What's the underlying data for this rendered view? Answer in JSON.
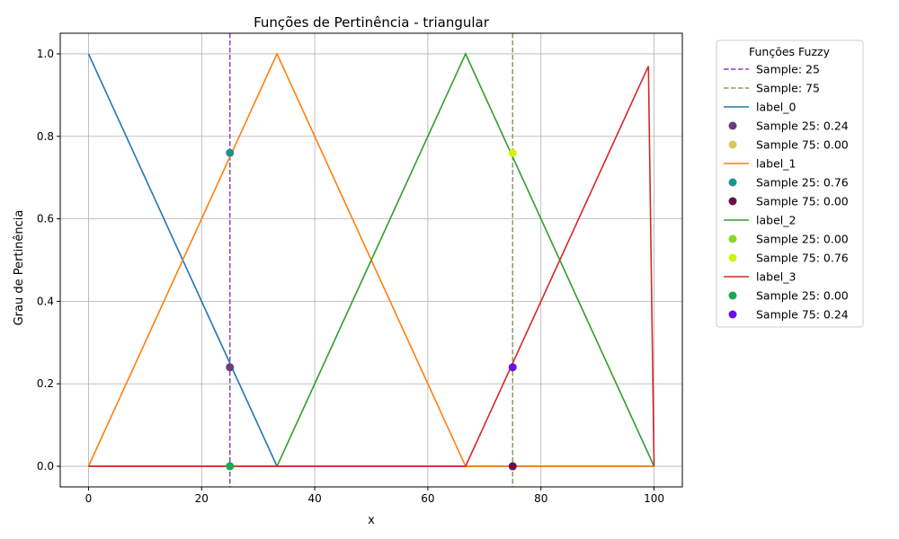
{
  "chart_data": {
    "type": "line",
    "title": "Funções de Pertinência - triangular",
    "xlabel": "x",
    "ylabel": "Grau de Pertinência",
    "xlim": [
      -5,
      105
    ],
    "ylim": [
      -0.05,
      1.05
    ],
    "x_ticks": [
      0,
      20,
      40,
      60,
      80,
      100
    ],
    "x_tick_labels": [
      "0",
      "20",
      "40",
      "60",
      "80",
      "100"
    ],
    "y_ticks": [
      0,
      0.2,
      0.4,
      0.6,
      0.8,
      1.0
    ],
    "y_tick_labels": [
      "0.0",
      "0.2",
      "0.4",
      "0.6",
      "0.8",
      "1.0"
    ],
    "grid": true,
    "legend_title": "Funções Fuzzy",
    "legend_position": "outside-right",
    "vlines": [
      {
        "name": "Sample: 25",
        "x": 25,
        "color": "#8e44ad"
      },
      {
        "name": "Sample: 75",
        "x": 75,
        "color": "#8a9a6a"
      }
    ],
    "series": [
      {
        "name": "label_0",
        "color": "#1f77b4",
        "x": [
          0,
          33.33,
          100
        ],
        "y": [
          1,
          0,
          0
        ],
        "samples": [
          {
            "name": "Sample 25: 0.24",
            "x": 25,
            "y": 0.24,
            "color": "#6a3d7a"
          },
          {
            "name": "Sample 75: 0.00",
            "x": 75,
            "y": 0.0,
            "color": "#d8c85a"
          }
        ]
      },
      {
        "name": "label_1",
        "color": "#ff7f0e",
        "x": [
          0,
          33.33,
          66.67,
          100
        ],
        "y": [
          0,
          1,
          0,
          0
        ],
        "samples": [
          {
            "name": "Sample 25: 0.76",
            "x": 25,
            "y": 0.76,
            "color": "#21918c"
          },
          {
            "name": "Sample 75: 0.00",
            "x": 75,
            "y": 0.0,
            "color": "#6d0f4a"
          }
        ]
      },
      {
        "name": "label_2",
        "color": "#2ca02c",
        "x": [
          0,
          33.33,
          66.67,
          100
        ],
        "y": [
          0,
          0,
          1,
          0
        ],
        "samples": [
          {
            "name": "Sample 25: 0.00",
            "x": 25,
            "y": 0.0,
            "color": "#8ad62a"
          },
          {
            "name": "Sample 75: 0.76",
            "x": 75,
            "y": 0.76,
            "color": "#d4f00e"
          }
        ]
      },
      {
        "name": "label_3",
        "color": "#d62728",
        "x": [
          0,
          66.67,
          99,
          100
        ],
        "y": [
          0,
          0,
          0.97,
          0
        ],
        "samples": [
          {
            "name": "Sample 25: 0.00",
            "x": 25,
            "y": 0.0,
            "color": "#1fa654"
          },
          {
            "name": "Sample 75: 0.24",
            "x": 75,
            "y": 0.24,
            "color": "#6a10e6"
          }
        ]
      }
    ]
  }
}
